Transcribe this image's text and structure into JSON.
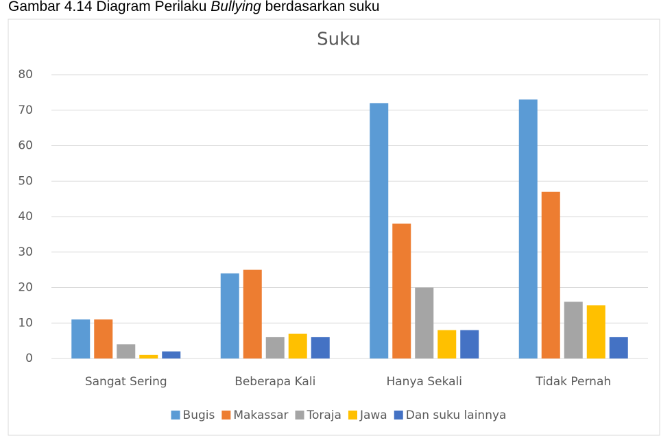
{
  "caption": [
    "Gambar 4.14 Diagram Perilaku ",
    "Bullying",
    " berdasarkan suku"
  ],
  "chart_data": {
    "type": "bar",
    "title": "Suku",
    "categories": [
      "Sangat Sering",
      "Beberapa Kali",
      "Hanya Sekali",
      "Tidak Pernah"
    ],
    "series": [
      {
        "name": "Bugis",
        "color": "#5b9bd5",
        "values": [
          11,
          24,
          72,
          73
        ]
      },
      {
        "name": "Makassar",
        "color": "#ed7d31",
        "values": [
          11,
          25,
          38,
          47
        ]
      },
      {
        "name": "Toraja",
        "color": "#a5a5a5",
        "values": [
          4,
          6,
          20,
          16
        ]
      },
      {
        "name": "Jawa",
        "color": "#ffc000",
        "values": [
          1,
          7,
          8,
          15
        ]
      },
      {
        "name": "Dan suku lainnya",
        "color": "#4472c4",
        "values": [
          2,
          6,
          8,
          6
        ]
      }
    ],
    "ylim": [
      0,
      80
    ],
    "yticks": [
      0,
      10,
      20,
      30,
      40,
      50,
      60,
      70,
      80
    ],
    "grid": true,
    "legend": "bottom"
  }
}
